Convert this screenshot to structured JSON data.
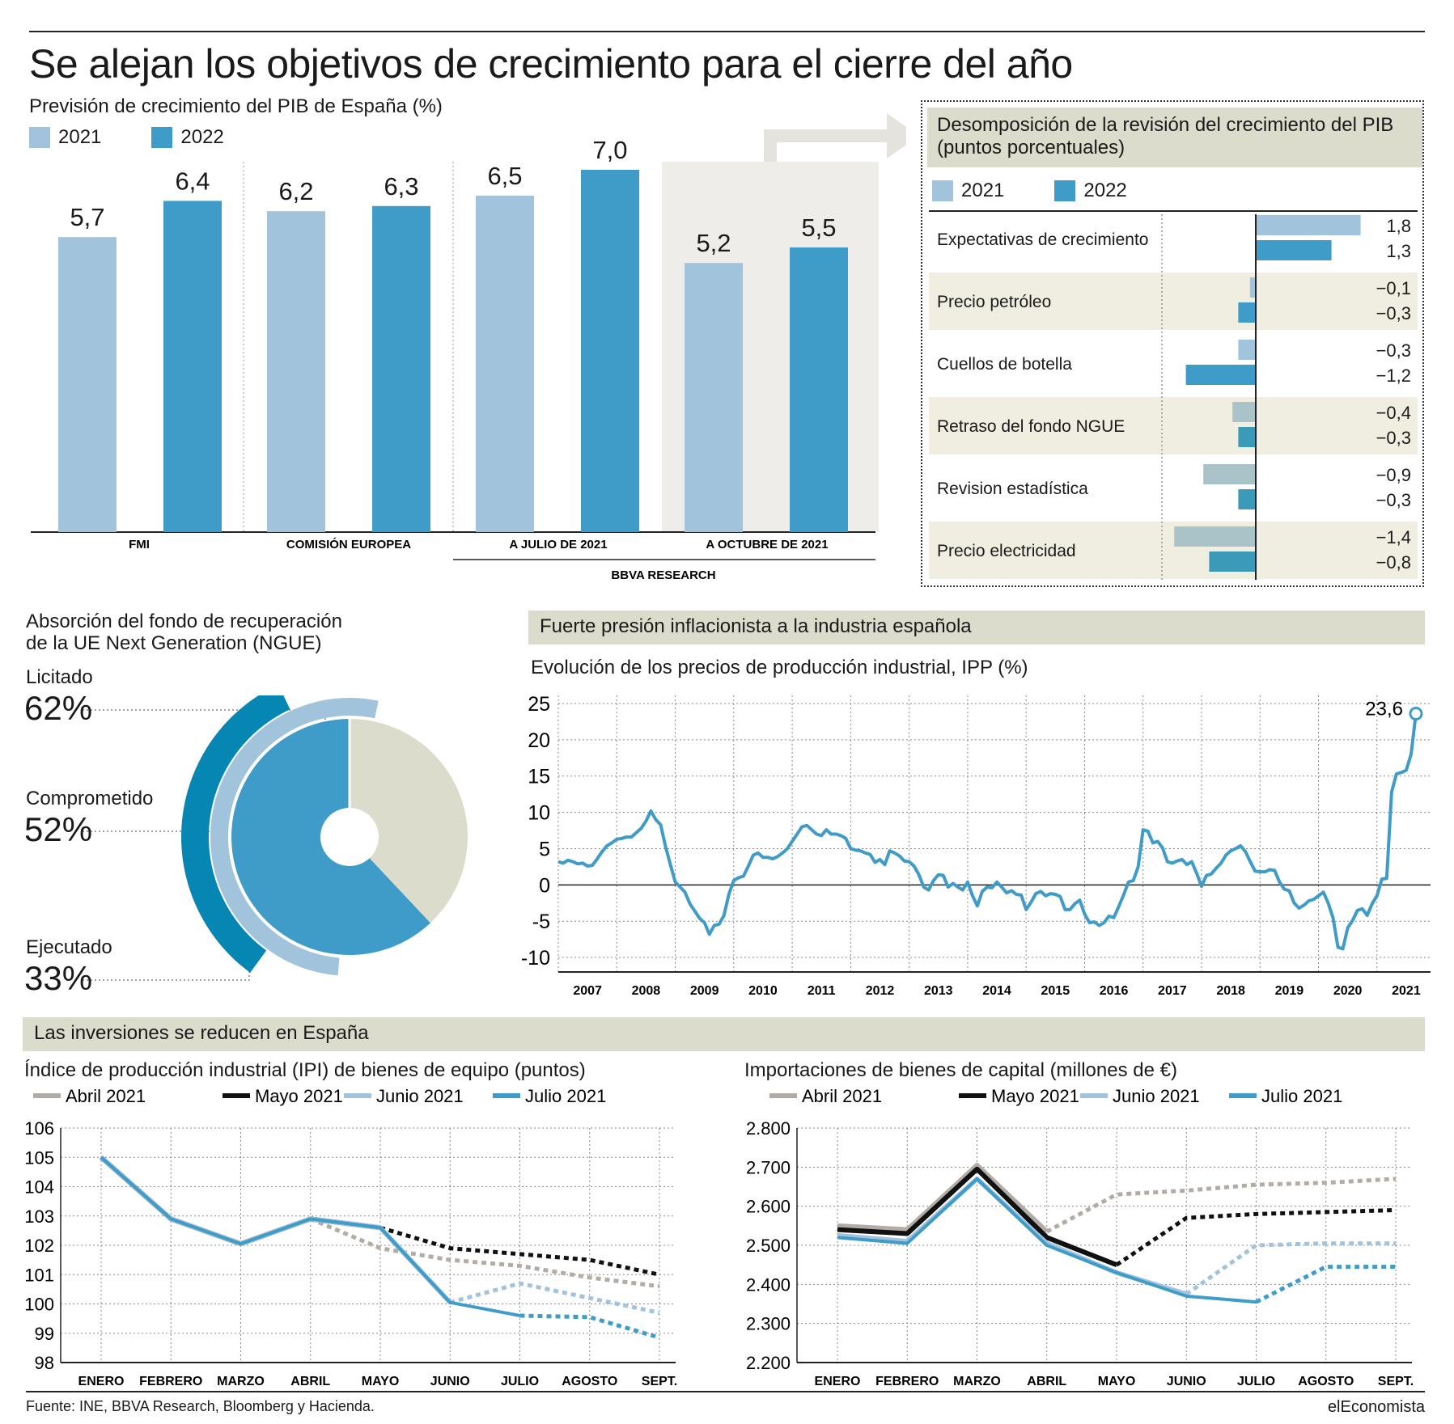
{
  "title": "Se alejan los objetivos de crecimiento para el cierre del año",
  "colors": {
    "c2021": "#a2c3dc",
    "c2022": "#3f9bc8",
    "band": "#dcdccc",
    "donut_rest": "#dcdccc",
    "ring_dark": "#0686b3",
    "grey": "#b3aca6",
    "black": "#111111",
    "light": "#a2c3dc",
    "blue": "#3f9bc8"
  },
  "gdp": {
    "subtitle": "Previsión de crecimiento del PIB de España (%)",
    "legend": [
      "2021",
      "2022"
    ],
    "groups": [
      "FMI",
      "COMISIÓN EUROPEA",
      "A JULIO DE 2021",
      "A OCTUBRE DE 2021"
    ],
    "group_label": "BBVA RESEARCH",
    "chart_data": {
      "type": "bar",
      "categories": [
        "FMI",
        "COMISIÓN EUROPEA",
        "A JULIO DE 2021",
        "A OCTUBRE DE 2021"
      ],
      "series": [
        {
          "name": "2021",
          "values": [
            5.7,
            6.2,
            6.5,
            5.2
          ],
          "labels": [
            "5,7",
            "6,2",
            "6,5",
            "5,2"
          ]
        },
        {
          "name": "2022",
          "values": [
            6.4,
            6.3,
            7.0,
            5.5
          ],
          "labels": [
            "6,4",
            "6,3",
            "7,0",
            "5,5"
          ]
        }
      ],
      "ylim": [
        0,
        8
      ]
    }
  },
  "decomp": {
    "title_line1": "Desomposición de la revisión del crecimiento del PIB",
    "title_line2": "(puntos porcentuales)",
    "legend": [
      "2021",
      "2022"
    ],
    "chart_data": {
      "type": "bar",
      "orientation": "horizontal",
      "categories": [
        "Expectativas de crecimiento",
        "Precio petróleo",
        "Cuellos de botella",
        "Retraso del fondo NGUE",
        "Revision estadística",
        "Precio electricidad"
      ],
      "series": [
        {
          "name": "2021",
          "values": [
            1.8,
            -0.1,
            -0.3,
            -0.4,
            -0.9,
            -1.4
          ],
          "labels": [
            "1,8",
            "−0,1",
            "−0,3",
            "−0,4",
            "−0,9",
            "−1,4"
          ]
        },
        {
          "name": "2022",
          "values": [
            1.3,
            -0.3,
            -1.2,
            -0.3,
            -0.3,
            -0.8
          ],
          "labels": [
            "1,3",
            "−0,3",
            "−1,2",
            "−0,3",
            "−0,3",
            "−0,8"
          ]
        }
      ]
    }
  },
  "ngue": {
    "title_line1": "Absorción del fondo de recuperación",
    "title_line2": "de la UE Next Generation (NGUE)",
    "chart_data": {
      "type": "pie",
      "items": [
        {
          "name": "Licitado",
          "value": 62,
          "label": "62%"
        },
        {
          "name": "Comprometido",
          "value": 52,
          "label": "52%"
        },
        {
          "name": "Ejecutado",
          "value": 33,
          "label": "33%"
        }
      ]
    }
  },
  "ipp": {
    "band": "Fuerte presión inflacionista a la industria española",
    "subtitle": "Evolución de los precios de producción industrial, IPP (%)",
    "annotation": "23,6",
    "chart_data": {
      "type": "line",
      "x_start": 2007.0,
      "x_step": 0.0833333,
      "ylim": [
        -12,
        25
      ],
      "yticks": [
        "25",
        "20",
        "15",
        "10",
        "5",
        "0",
        "-5",
        "-10"
      ],
      "ytick_values": [
        25,
        20,
        15,
        10,
        5,
        0,
        -5,
        -10
      ],
      "xticks": [
        "2007",
        "2008",
        "2009",
        "2010",
        "2011",
        "2012",
        "2013",
        "2014",
        "2015",
        "2016",
        "2017",
        "2018",
        "2019",
        "2020",
        "2021"
      ],
      "y": [
        3.2,
        3.0,
        3.4,
        3.2,
        2.9,
        3.0,
        2.6,
        2.7,
        3.6,
        4.6,
        5.4,
        5.8,
        6.3,
        6.4,
        6.6,
        6.6,
        7.2,
        7.8,
        8.8,
        10.2,
        9.0,
        8.3,
        5.3,
        2.8,
        0.4,
        -0.3,
        -1.0,
        -2.6,
        -3.6,
        -4.6,
        -5.2,
        -6.8,
        -5.6,
        -5.4,
        -4.2,
        -1.3,
        0.6,
        1.0,
        1.2,
        2.6,
        4.1,
        4.4,
        3.8,
        3.8,
        3.6,
        3.9,
        4.4,
        5.0,
        6.0,
        7.0,
        8.0,
        8.2,
        7.6,
        7.0,
        6.8,
        7.6,
        7.0,
        7.0,
        6.8,
        6.4,
        5.0,
        4.8,
        4.7,
        4.4,
        4.2,
        3.1,
        3.5,
        2.8,
        4.7,
        4.4,
        4.0,
        3.3,
        3.2,
        2.6,
        1.4,
        -0.3,
        -0.7,
        0.6,
        1.4,
        1.3,
        -0.3,
        0.2,
        -0.3,
        -0.7,
        0.4,
        -1.5,
        -2.9,
        -0.9,
        -0.3,
        -0.4,
        0.4,
        -0.3,
        -1.1,
        -0.8,
        -1.3,
        -1.4,
        -3.4,
        -2.4,
        -1.2,
        -0.9,
        -1.5,
        -1.2,
        -1.3,
        -1.6,
        -3.4,
        -3.4,
        -2.6,
        -2.1,
        -4.0,
        -5.2,
        -5.1,
        -5.6,
        -5.2,
        -4.3,
        -4.5,
        -3.0,
        -1.4,
        0.4,
        0.6,
        2.5,
        7.6,
        7.4,
        5.8,
        6.0,
        5.1,
        3.2,
        3.0,
        3.3,
        3.5,
        2.8,
        3.2,
        1.6,
        -0.2,
        1.3,
        1.5,
        2.3,
        3.0,
        4.1,
        4.7,
        5.0,
        5.4,
        4.6,
        3.2,
        1.9,
        1.8,
        1.8,
        2.1,
        2.0,
        0.4,
        -0.6,
        -0.8,
        -2.5,
        -3.2,
        -2.8,
        -2.2,
        -2.0,
        -1.5,
        -1.0,
        -2.5,
        -4.6,
        -8.6,
        -8.8,
        -5.9,
        -4.9,
        -3.5,
        -3.3,
        -4.2,
        -2.6,
        -1.5,
        0.8,
        0.9,
        12.8,
        15.3,
        15.5,
        15.8,
        18.0,
        23.6
      ]
    }
  },
  "inv": {
    "band": "Las inversiones se reducen en España",
    "months": [
      "ENERO",
      "FEBRERO",
      "MARZO",
      "ABRIL",
      "MAYO",
      "JUNIO",
      "JULIO",
      "AGOSTO",
      "SEPT."
    ],
    "legend": [
      "Abril 2021",
      "Mayo 2021",
      "Junio 2021",
      "Julio 2021"
    ],
    "ipi": {
      "subtitle": "Índice de producción industrial (IPI) de bienes de equipo (puntos)",
      "chart_data": {
        "type": "line",
        "categories": [
          "ENERO",
          "FEBRERO",
          "MARZO",
          "ABRIL",
          "MAYO",
          "JUNIO",
          "JULIO",
          "AGOSTO",
          "SEPT."
        ],
        "yticks": [
          "106",
          "105",
          "104",
          "103",
          "102",
          "101",
          "100",
          "99",
          "98"
        ],
        "ylim": [
          98,
          106
        ],
        "series": [
          {
            "name": "Abril 2021",
            "values": [
              105.0,
              102.9,
              102.05,
              102.9,
              101.9,
              101.5,
              101.3,
              100.9,
              100.6
            ],
            "observed_until": 3
          },
          {
            "name": "Mayo 2021",
            "values": [
              105.0,
              102.9,
              102.05,
              102.9,
              102.6,
              101.9,
              101.7,
              101.5,
              101.0
            ],
            "observed_until": 4
          },
          {
            "name": "Junio 2021",
            "values": [
              105.0,
              102.9,
              102.05,
              102.9,
              102.6,
              100.05,
              100.7,
              100.2,
              99.7
            ],
            "observed_until": 5
          },
          {
            "name": "Julio 2021",
            "values": [
              105.0,
              102.9,
              102.05,
              102.9,
              102.6,
              100.05,
              99.6,
              99.55,
              98.85
            ],
            "observed_until": 6
          }
        ]
      }
    },
    "imp": {
      "subtitle": "Importaciones de bienes de capital (millones de €)",
      "chart_data": {
        "type": "line",
        "categories": [
          "ENERO",
          "FEBRERO",
          "MARZO",
          "ABRIL",
          "MAYO",
          "JUNIO",
          "JULIO",
          "AGOSTO",
          "SEPT."
        ],
        "yticks": [
          "2.800",
          "2.700",
          "2.600",
          "2.500",
          "2.400",
          "2.300",
          "2.200"
        ],
        "ylim": [
          2200,
          2800
        ],
        "series": [
          {
            "name": "Abril 2021",
            "values": [
              2550,
              2540,
              2705,
              2535,
              2630,
              2640,
              2655,
              2660,
              2670
            ],
            "observed_until": 3
          },
          {
            "name": "Mayo 2021",
            "values": [
              2540,
              2530,
              2695,
              2520,
              2450,
              2570,
              2580,
              2585,
              2590
            ],
            "observed_until": 4
          },
          {
            "name": "Junio 2021",
            "values": [
              2525,
              2510,
              2670,
              2505,
              2430,
              2375,
              2500,
              2505,
              2505
            ],
            "observed_until": 5
          },
          {
            "name": "Julio 2021",
            "values": [
              2520,
              2505,
              2670,
              2500,
              2430,
              2370,
              2355,
              2445,
              2445
            ],
            "observed_until": 6
          }
        ]
      }
    }
  },
  "footer": {
    "source": "Fuente: INE, BBVA Research, Bloomberg y Hacienda.",
    "brand": "elEconomista"
  }
}
